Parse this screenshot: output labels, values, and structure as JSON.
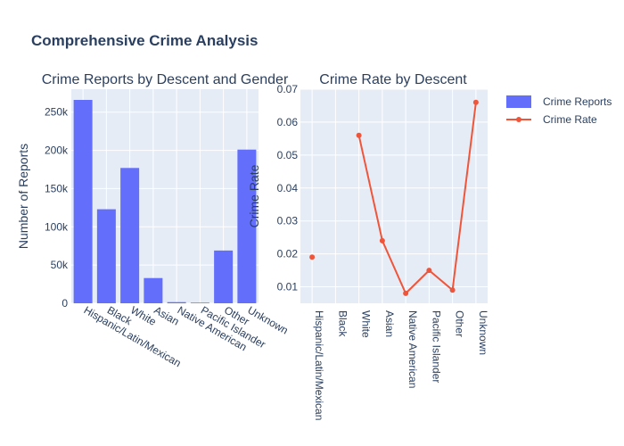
{
  "figure": {
    "title": "Comprehensive Crime Analysis"
  },
  "chart_data": [
    {
      "type": "bar",
      "title": "Crime Reports by Descent and Gender",
      "xlabel": "",
      "ylabel": "Number of Reports",
      "categories": [
        "Hispanic/Latin/Mexican",
        "Black",
        "White",
        "Asian",
        "Native American",
        "Pacific Islander",
        "Other",
        "Unknown"
      ],
      "series": [
        {
          "name": "Crime Reports",
          "values": [
            266000,
            123000,
            177000,
            33000,
            1500,
            800,
            69000,
            201000
          ],
          "color": "#636efa"
        }
      ],
      "ylim": [
        0,
        280000
      ],
      "yticks": [
        0,
        50000,
        100000,
        150000,
        200000,
        250000
      ],
      "ytick_labels": [
        "0",
        "50k",
        "100k",
        "150k",
        "200k",
        "250k"
      ],
      "grid": true
    },
    {
      "type": "line",
      "title": "Crime Rate by Descent",
      "xlabel": "",
      "ylabel": "Crime Rate",
      "categories": [
        "Hispanic/Latin/Mexican",
        "Black",
        "White",
        "Asian",
        "Native American",
        "Pacific Islander",
        "Other",
        "Unknown"
      ],
      "series": [
        {
          "name": "Crime Rate",
          "values": [
            0.019,
            null,
            0.056,
            0.024,
            0.008,
            0.015,
            0.009,
            0.066
          ],
          "color": "#ef553b"
        }
      ],
      "ylim": [
        0.005,
        0.07
      ],
      "yticks": [
        0.01,
        0.02,
        0.03,
        0.04,
        0.05,
        0.06,
        0.07
      ],
      "ytick_labels": [
        "0.01",
        "0.02",
        "0.03",
        "0.04",
        "0.05",
        "0.06",
        "0.07"
      ],
      "grid": true
    }
  ],
  "legend": {
    "placement": "top-right",
    "items": [
      {
        "label": "Crime Reports",
        "kind": "bar",
        "color": "#636efa"
      },
      {
        "label": "Crime Rate",
        "kind": "line",
        "color": "#ef553b"
      }
    ]
  }
}
